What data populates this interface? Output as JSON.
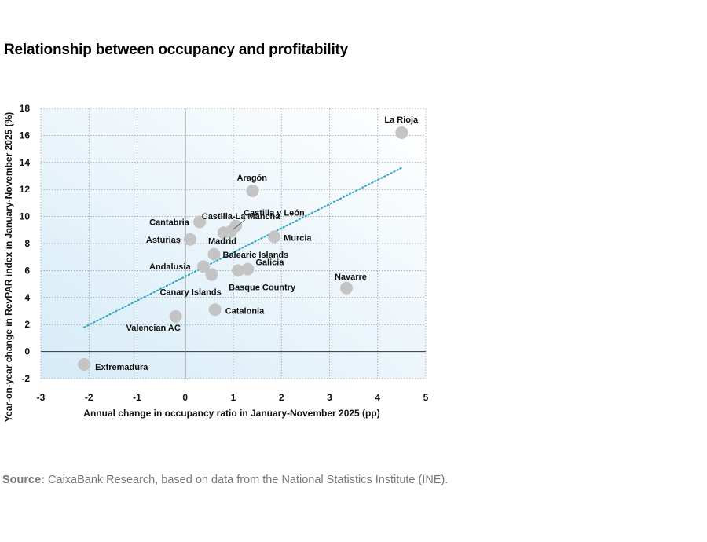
{
  "title": "Relationship between occupancy and profitability",
  "source": {
    "label": "Source:",
    "text": " CaixaBank Research, based on data from the National Statistics Institute (INE)."
  },
  "chart_data": {
    "type": "scatter",
    "title": "Relationship between occupancy and profitability",
    "xlabel": "Annual change in occupancy ratio in January-November 2025 (pp)",
    "ylabel": "Year-on-year change in RevPAR index in January-November 2025 (%)",
    "xlim": [
      -3,
      5
    ],
    "ylim": [
      -2,
      18
    ],
    "xticks": [
      -3,
      -2,
      -1,
      0,
      1,
      2,
      3,
      4,
      5
    ],
    "yticks": [
      -2,
      0,
      2,
      4,
      6,
      8,
      10,
      12,
      14,
      16,
      18
    ],
    "grid": true,
    "points": [
      {
        "label": "La Rioja",
        "x": 4.5,
        "y": 16.2
      },
      {
        "label": "Aragón",
        "x": 1.4,
        "y": 11.9
      },
      {
        "label": "Cantabria",
        "x": 0.3,
        "y": 9.6
      },
      {
        "label": "Castilla-La Mancha",
        "x": 0.8,
        "y": 8.8
      },
      {
        "label": "Castilla y León",
        "x": 1.05,
        "y": 9.3
      },
      {
        "label": "Asturias",
        "x": 0.1,
        "y": 8.3
      },
      {
        "label": "Murcia",
        "x": 1.85,
        "y": 8.5
      },
      {
        "label": "Madrid",
        "x": 0.95,
        "y": 8.9
      },
      {
        "label": "Balearic Islands",
        "x": 0.6,
        "y": 7.2
      },
      {
        "label": "Andalusia",
        "x": 0.38,
        "y": 6.3
      },
      {
        "label": "Galicia",
        "x": 1.3,
        "y": 6.1
      },
      {
        "label": "Basque Country",
        "x": 1.1,
        "y": 6.0
      },
      {
        "label": "Canary Islands",
        "x": 0.55,
        "y": 5.7
      },
      {
        "label": "Navarre",
        "x": 3.35,
        "y": 4.7
      },
      {
        "label": "Catalonia",
        "x": 0.62,
        "y": 3.1
      },
      {
        "label": "Valencian AC",
        "x": -0.2,
        "y": 2.6
      },
      {
        "label": "Extremadura",
        "x": -2.1,
        "y": -0.95
      }
    ],
    "trendline": {
      "x": [
        -2.1,
        4.5
      ],
      "y": [
        1.8,
        13.6
      ],
      "style": "dotted",
      "color": "#2aa8c8"
    },
    "colors": {
      "marker": "#c4c4c4",
      "trend": "#2aa8c8",
      "grid": "#9a9a9a"
    }
  }
}
